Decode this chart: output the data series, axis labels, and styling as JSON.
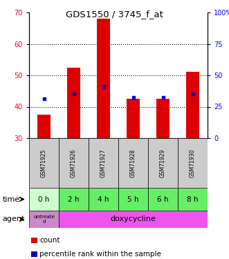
{
  "title": "GDS1550 / 3745_f_at",
  "samples": [
    "GSM71925",
    "GSM71926",
    "GSM71927",
    "GSM71928",
    "GSM71929",
    "GSM71930"
  ],
  "count_values": [
    37.5,
    52.5,
    68.0,
    42.5,
    42.5,
    51.0
  ],
  "count_base": 30,
  "percentile_values": [
    42.5,
    44.0,
    46.5,
    43.0,
    43.0,
    44.0
  ],
  "ylim": [
    30,
    70
  ],
  "y_left_ticks": [
    30,
    40,
    50,
    60,
    70
  ],
  "y_right_ticks": [
    0,
    25,
    50,
    75,
    100
  ],
  "y_right_labels": [
    "0",
    "25",
    "50",
    "75",
    "100%"
  ],
  "grid_ticks": [
    40,
    50,
    60
  ],
  "time_labels": [
    "0 h",
    "2 h",
    "4 h",
    "5 h",
    "6 h",
    "8 h"
  ],
  "time_bg_col0": "#ccffcc",
  "time_bg_col1": "#66ee66",
  "agent_untreated_text": "untreate\nd",
  "agent_treated_text": "doxycycline",
  "agent_untreated_bg": "#cc88cc",
  "agent_treated_bg": "#ee55ee",
  "sample_bg": "#cccccc",
  "bar_color": "#dd0000",
  "dot_color": "#0000cc",
  "bar_width": 0.45,
  "grid_linestyle": ":",
  "grid_linewidth": 0.8,
  "legend_count_label": "count",
  "legend_pct_label": "percentile rank within the sample"
}
